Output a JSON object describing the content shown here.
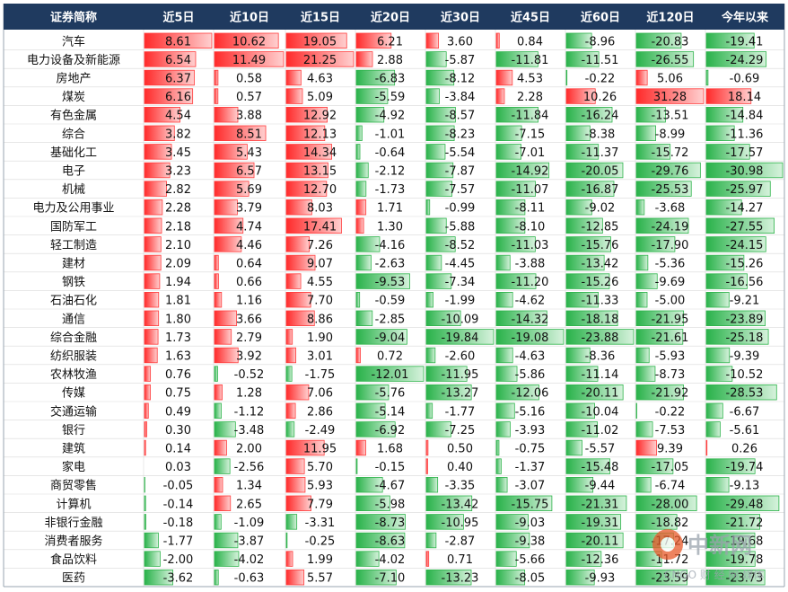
{
  "chart_data": {
    "type": "table",
    "header_color": "#1f3a5f",
    "positive_color": "#ff3b3b",
    "negative_color": "#2db34a",
    "columns": [
      "证券简称",
      "近5日",
      "近10日",
      "近15日",
      "近20日",
      "近30日",
      "近45日",
      "近60日",
      "近120日",
      "今年以来"
    ],
    "rows": [
      {
        "name": "汽车",
        "values": [
          8.61,
          10.62,
          19.05,
          6.21,
          3.6,
          0.84,
          -8.96,
          -20.83,
          -19.41
        ]
      },
      {
        "name": "电力设备及新能源",
        "values": [
          6.54,
          11.49,
          21.25,
          2.88,
          -5.87,
          -11.81,
          -11.51,
          -26.55,
          -24.29
        ]
      },
      {
        "name": "房地产",
        "values": [
          6.37,
          0.58,
          4.63,
          -6.83,
          -8.12,
          4.53,
          -0.22,
          5.06,
          -0.69
        ]
      },
      {
        "name": "煤炭",
        "values": [
          6.16,
          0.57,
          5.09,
          -5.59,
          -3.84,
          2.28,
          10.26,
          31.28,
          18.14
        ]
      },
      {
        "name": "有色金属",
        "values": [
          4.54,
          3.88,
          12.92,
          -4.92,
          -8.57,
          -11.84,
          -16.24,
          -13.51,
          -14.84
        ]
      },
      {
        "name": "综合",
        "values": [
          3.82,
          8.51,
          12.13,
          -1.01,
          -8.23,
          -7.15,
          -8.38,
          -8.99,
          -11.36
        ]
      },
      {
        "name": "基础化工",
        "values": [
          3.45,
          5.43,
          14.34,
          -0.64,
          -5.54,
          -7.01,
          -11.37,
          -15.72,
          -17.57
        ]
      },
      {
        "name": "电子",
        "values": [
          3.23,
          6.57,
          13.15,
          -2.12,
          -7.87,
          -14.92,
          -20.05,
          -29.76,
          -30.98
        ]
      },
      {
        "name": "机械",
        "values": [
          2.82,
          5.69,
          12.7,
          -1.73,
          -7.57,
          -11.07,
          -16.87,
          -25.53,
          -25.97
        ]
      },
      {
        "name": "电力及公用事业",
        "values": [
          2.28,
          3.79,
          8.03,
          1.71,
          -0.99,
          -8.11,
          -9.02,
          -3.68,
          -14.27
        ]
      },
      {
        "name": "国防军工",
        "values": [
          2.18,
          4.74,
          17.41,
          1.3,
          -5.88,
          -8.1,
          -12.85,
          -24.19,
          -27.55
        ]
      },
      {
        "name": "轻工制造",
        "values": [
          2.1,
          4.46,
          7.26,
          -4.16,
          -8.52,
          -11.03,
          -15.76,
          -17.9,
          -24.15
        ]
      },
      {
        "name": "建材",
        "values": [
          2.09,
          0.64,
          9.07,
          -2.63,
          -4.45,
          -3.88,
          -13.42,
          -5.36,
          -15.26
        ]
      },
      {
        "name": "钢铁",
        "values": [
          1.94,
          0.66,
          4.55,
          -9.53,
          -7.34,
          -11.2,
          -15.26,
          -9.69,
          -16.56
        ]
      },
      {
        "name": "石油石化",
        "values": [
          1.81,
          1.16,
          7.7,
          -0.59,
          -1.99,
          -4.62,
          -11.33,
          -5.0,
          -9.21
        ]
      },
      {
        "name": "通信",
        "values": [
          1.8,
          3.66,
          8.86,
          -2.85,
          -10.09,
          -14.32,
          -18.18,
          -21.95,
          -23.89
        ]
      },
      {
        "name": "综合金融",
        "values": [
          1.73,
          2.79,
          1.9,
          -9.04,
          -19.84,
          -19.08,
          -23.88,
          -21.61,
          -25.18
        ]
      },
      {
        "name": "纺织服装",
        "values": [
          1.63,
          3.92,
          3.01,
          0.72,
          -2.6,
          -4.63,
          -8.36,
          -5.93,
          -9.39
        ]
      },
      {
        "name": "农林牧渔",
        "values": [
          0.76,
          -0.52,
          -1.75,
          -12.01,
          -11.95,
          -5.86,
          -11.14,
          -8.73,
          -10.52
        ]
      },
      {
        "name": "传媒",
        "values": [
          0.75,
          1.28,
          7.06,
          -5.76,
          -13.27,
          -12.06,
          -20.11,
          -21.92,
          -28.53
        ]
      },
      {
        "name": "交通运输",
        "values": [
          0.49,
          -1.12,
          2.86,
          -5.14,
          -1.77,
          -5.16,
          -10.04,
          -0.22,
          -6.67
        ]
      },
      {
        "name": "银行",
        "values": [
          0.3,
          -3.48,
          -2.49,
          -6.92,
          -7.25,
          -3.93,
          -11.02,
          -7.53,
          -5.61
        ]
      },
      {
        "name": "建筑",
        "values": [
          0.14,
          2.0,
          11.95,
          1.68,
          0.5,
          -0.75,
          -5.57,
          9.39,
          0.26
        ]
      },
      {
        "name": "家电",
        "values": [
          0.03,
          -2.56,
          5.7,
          -0.15,
          0.4,
          -1.37,
          -15.48,
          -17.05,
          -19.74
        ]
      },
      {
        "name": "商贸零售",
        "values": [
          -0.05,
          1.34,
          5.93,
          -4.67,
          -3.35,
          -3.07,
          -9.44,
          -6.74,
          -9.13
        ]
      },
      {
        "name": "计算机",
        "values": [
          -0.14,
          2.65,
          7.79,
          -5.98,
          -13.42,
          -15.75,
          -21.31,
          -28.0,
          -29.48
        ]
      },
      {
        "name": "非银行金融",
        "values": [
          -0.18,
          -1.09,
          -3.31,
          -8.73,
          -10.95,
          -9.03,
          -19.31,
          -18.82,
          -21.72
        ]
      },
      {
        "name": "消费者服务",
        "values": [
          -1.77,
          -3.87,
          -0.25,
          -8.63,
          -2.87,
          -9.38,
          -20.11,
          -17.24,
          -19.68
        ]
      },
      {
        "name": "食品饮料",
        "values": [
          -2.0,
          -4.02,
          1.99,
          -4.02,
          0.71,
          -5.66,
          -12.36,
          -11.72,
          -19.78
        ]
      },
      {
        "name": "医药",
        "values": [
          -3.62,
          -0.63,
          5.57,
          -7.1,
          -13.23,
          -8.05,
          -9.93,
          -23.59,
          -23.73
        ]
      }
    ],
    "watermark": {
      "logo_text": "中新网",
      "sub_text": "CNGO 财 经 网 媒体"
    }
  }
}
